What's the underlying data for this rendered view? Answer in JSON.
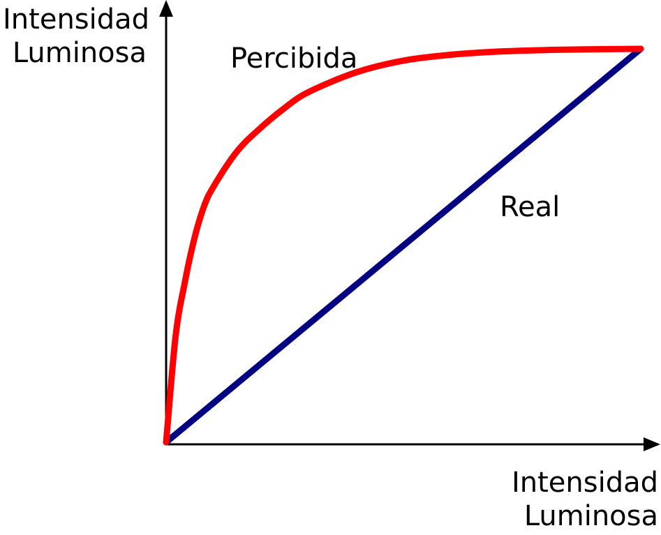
{
  "chart_data": {
    "type": "line",
    "title": "",
    "ylabel": [
      "Intensidad",
      "Luminosa"
    ],
    "xlabel": [
      "Intensidad",
      "Luminosa"
    ],
    "xlim": [
      0,
      1
    ],
    "ylim": [
      0,
      1
    ],
    "grid": false,
    "legend": "none",
    "series": [
      {
        "name": "Percibida",
        "color": "#ff0000",
        "x": [
          0,
          0.02,
          0.04,
          0.06,
          0.08,
          0.1,
          0.15,
          0.2,
          0.25,
          0.3,
          0.4,
          0.5,
          0.6,
          0.7,
          0.8,
          0.9,
          1.0
        ],
        "y": [
          0,
          0.27,
          0.41,
          0.52,
          0.6,
          0.65,
          0.74,
          0.8,
          0.85,
          0.89,
          0.94,
          0.97,
          0.985,
          0.993,
          0.997,
          0.999,
          1.0
        ]
      },
      {
        "name": "Real",
        "color": "#000080",
        "x": [
          0,
          1
        ],
        "y": [
          0,
          1
        ]
      }
    ]
  }
}
